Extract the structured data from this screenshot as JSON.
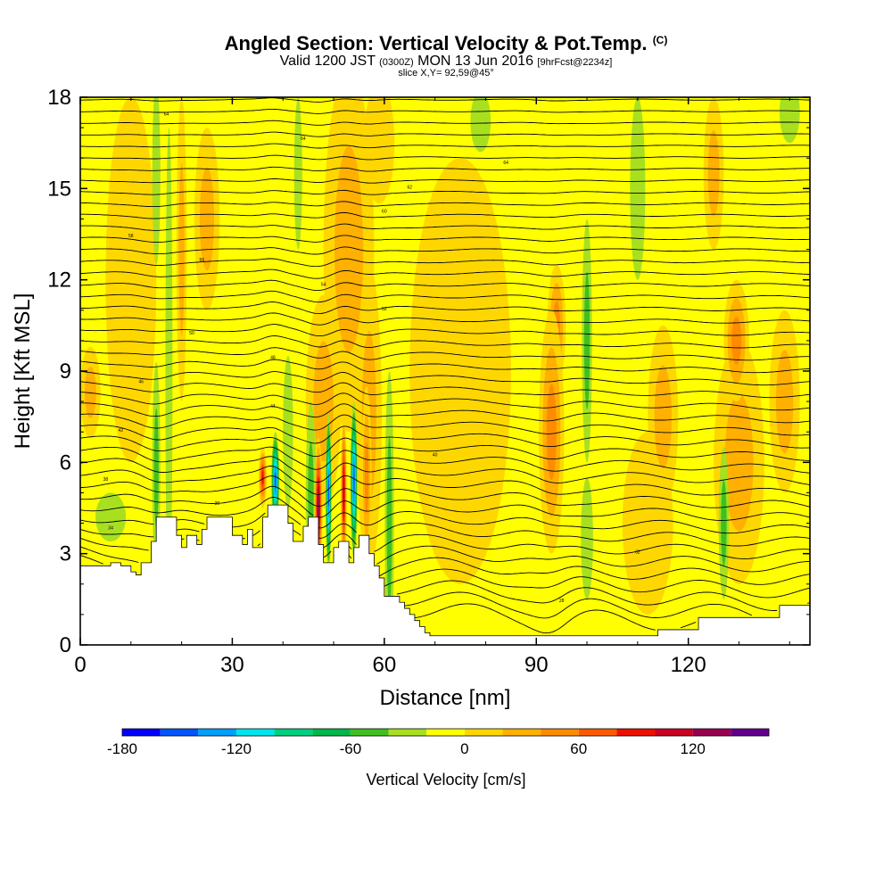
{
  "header": {
    "title_main": "Angled Section: Vertical Velocity & Pot.Temp.",
    "title_units": "(C)",
    "valid_prefix": "Valid 1200 JST",
    "valid_utc": "(0300Z)",
    "valid_date": "MON 13 Jun 2016",
    "valid_fcst": "[9hrFcst@2234z]",
    "slice": "slice X,Y= 92,59@45°"
  },
  "chart_data": {
    "type": "heatmap",
    "xlabel": "Distance [nm]",
    "ylabel": "Height [Kft MSL]",
    "xlim": [
      0,
      144
    ],
    "ylim": [
      0,
      18
    ],
    "x_ticks": [
      0,
      30,
      60,
      90,
      120
    ],
    "y_ticks": [
      0,
      3,
      6,
      9,
      12,
      15,
      18
    ],
    "colorbar": {
      "title": "Vertical Velocity [cm/s]",
      "bins": [
        -180,
        -160,
        -140,
        -120,
        -100,
        -80,
        -60,
        -40,
        -20,
        0,
        20,
        40,
        60,
        80,
        100,
        120,
        140,
        160
      ],
      "colors": [
        "#0000ff",
        "#0055ff",
        "#00a0ff",
        "#00e5ee",
        "#00d080",
        "#00b84a",
        "#40c020",
        "#a8e020",
        "#ffff00",
        "#ffd700",
        "#ffb000",
        "#ff8c00",
        "#ff5a00",
        "#ee1000",
        "#cc0020",
        "#990050",
        "#600090"
      ],
      "tick_values": [
        -180,
        -120,
        -60,
        0,
        60,
        120
      ],
      "tick_labels": [
        "-180",
        "-120",
        "-60",
        "0",
        "60",
        "120"
      ]
    },
    "background_color": "#ffff00",
    "terrain": {
      "x": [
        0,
        1,
        6,
        8,
        10,
        11,
        12,
        14,
        15,
        18,
        19,
        20,
        21,
        23,
        24,
        25,
        29,
        30,
        32,
        33,
        34,
        35,
        36,
        37,
        40,
        41,
        42,
        43,
        44,
        45,
        46,
        47,
        48,
        49,
        50,
        51,
        52,
        53,
        54,
        55,
        56,
        57,
        58,
        59,
        60,
        61,
        62,
        63,
        64,
        65,
        66,
        67,
        68,
        69,
        70,
        90,
        113,
        114,
        120,
        122,
        135,
        138,
        140,
        144
      ],
      "y": [
        2.6,
        2.6,
        2.7,
        2.6,
        2.4,
        2.3,
        2.7,
        3.4,
        4.2,
        4.2,
        3.6,
        3.2,
        3.6,
        3.3,
        3.8,
        4.2,
        4.2,
        3.6,
        3.3,
        3.8,
        3.2,
        3.2,
        4.2,
        4.6,
        4.6,
        4.0,
        3.4,
        3.4,
        3.9,
        4.2,
        4.2,
        3.3,
        2.7,
        2.7,
        3.2,
        3.4,
        3.4,
        2.7,
        3.2,
        3.6,
        3.6,
        3.0,
        2.6,
        2.2,
        1.6,
        1.6,
        1.6,
        1.4,
        1.2,
        1.0,
        0.8,
        0.6,
        0.4,
        0.3,
        0.3,
        0.3,
        0.3,
        0.5,
        0.5,
        0.9,
        0.9,
        1.3,
        1.3,
        1.3
      ]
    },
    "velocity_features": [
      {
        "x": 15,
        "y": 5.8,
        "sx": 0.8,
        "sy": 3.5,
        "value": -60
      },
      {
        "x": 15,
        "y": 15.5,
        "sx": 0.8,
        "sy": 3,
        "value": -40
      },
      {
        "x": 17.5,
        "y": 9,
        "sx": 0.7,
        "sy": 8,
        "value": -30
      },
      {
        "x": 6,
        "y": 4.2,
        "sx": 3,
        "sy": 0.8,
        "value": -40
      },
      {
        "x": 25,
        "y": 14,
        "sx": 2.5,
        "sy": 3,
        "value": 30
      },
      {
        "x": 20,
        "y": 13,
        "sx": 1,
        "sy": 5,
        "value": 30
      },
      {
        "x": 2,
        "y": 8.3,
        "sx": 2,
        "sy": 1.5,
        "value": 35
      },
      {
        "x": 36,
        "y": 5.5,
        "sx": 0.8,
        "sy": 1,
        "value": 100
      },
      {
        "x": 38.5,
        "y": 5.4,
        "sx": 0.8,
        "sy": 1.6,
        "value": -160
      },
      {
        "x": 41,
        "y": 7,
        "sx": 1,
        "sy": 2.5,
        "value": -40
      },
      {
        "x": 45.5,
        "y": 5,
        "sx": 1,
        "sy": 3,
        "value": -60
      },
      {
        "x": 47,
        "y": 4.5,
        "sx": 0.8,
        "sy": 2.3,
        "value": 130
      },
      {
        "x": 49,
        "y": 5,
        "sx": 0.6,
        "sy": 2.6,
        "value": -150
      },
      {
        "x": 52,
        "y": 5,
        "sx": 0.6,
        "sy": 2.6,
        "value": 120
      },
      {
        "x": 54,
        "y": 5.4,
        "sx": 0.7,
        "sy": 2.6,
        "value": -150
      },
      {
        "x": 56.5,
        "y": 5.5,
        "sx": 1,
        "sy": 3,
        "value": 60
      },
      {
        "x": 61,
        "y": 4,
        "sx": 0.9,
        "sy": 5,
        "value": -60
      },
      {
        "x": 43,
        "y": 15.5,
        "sx": 0.8,
        "sy": 2.5,
        "value": -30
      },
      {
        "x": 48,
        "y": 8,
        "sx": 3.5,
        "sy": 3.5,
        "value": 40
      },
      {
        "x": 57,
        "y": 7.5,
        "sx": 2.5,
        "sy": 5,
        "value": 40
      },
      {
        "x": 53,
        "y": 13,
        "sx": 5,
        "sy": 6,
        "value": 30
      },
      {
        "x": 75,
        "y": 9,
        "sx": 10,
        "sy": 7,
        "value": 25
      },
      {
        "x": 93,
        "y": 7,
        "sx": 2.5,
        "sy": 4,
        "value": 60
      },
      {
        "x": 94,
        "y": 10.5,
        "sx": 1.8,
        "sy": 2,
        "value": 50
      },
      {
        "x": 100,
        "y": 10,
        "sx": 1,
        "sy": 4,
        "value": -50
      },
      {
        "x": 100,
        "y": 3.5,
        "sx": 1.2,
        "sy": 2,
        "value": -40
      },
      {
        "x": 110,
        "y": 15,
        "sx": 1.5,
        "sy": 3,
        "value": -40
      },
      {
        "x": 115,
        "y": 7.5,
        "sx": 3,
        "sy": 3,
        "value": 30
      },
      {
        "x": 112,
        "y": 4,
        "sx": 5,
        "sy": 3,
        "value": 25
      },
      {
        "x": 127,
        "y": 4,
        "sx": 1,
        "sy": 2.5,
        "value": -50
      },
      {
        "x": 129.5,
        "y": 10,
        "sx": 2.5,
        "sy": 2,
        "value": 50
      },
      {
        "x": 130,
        "y": 6,
        "sx": 5,
        "sy": 4,
        "value": 30
      },
      {
        "x": 125,
        "y": 15.5,
        "sx": 2,
        "sy": 2.5,
        "value": 30
      },
      {
        "x": 139,
        "y": 8,
        "sx": 3,
        "sy": 3,
        "value": 30
      },
      {
        "x": 140,
        "y": 17.5,
        "sx": 2,
        "sy": 1,
        "value": -40
      },
      {
        "x": 79,
        "y": 17.2,
        "sx": 2,
        "sy": 1,
        "value": -30
      },
      {
        "x": 59,
        "y": 16.5,
        "sx": 3,
        "sy": 2,
        "value": 20
      },
      {
        "x": 10,
        "y": 12,
        "sx": 5,
        "sy": 6,
        "value": 20
      }
    ],
    "contour_labels": [
      "64",
      "64",
      "64",
      "62",
      "60",
      "58",
      "56",
      "54",
      "52",
      "50",
      "48",
      "46",
      "44",
      "42",
      "40",
      "38",
      "36",
      "34",
      "32",
      "30",
      "28"
    ]
  }
}
